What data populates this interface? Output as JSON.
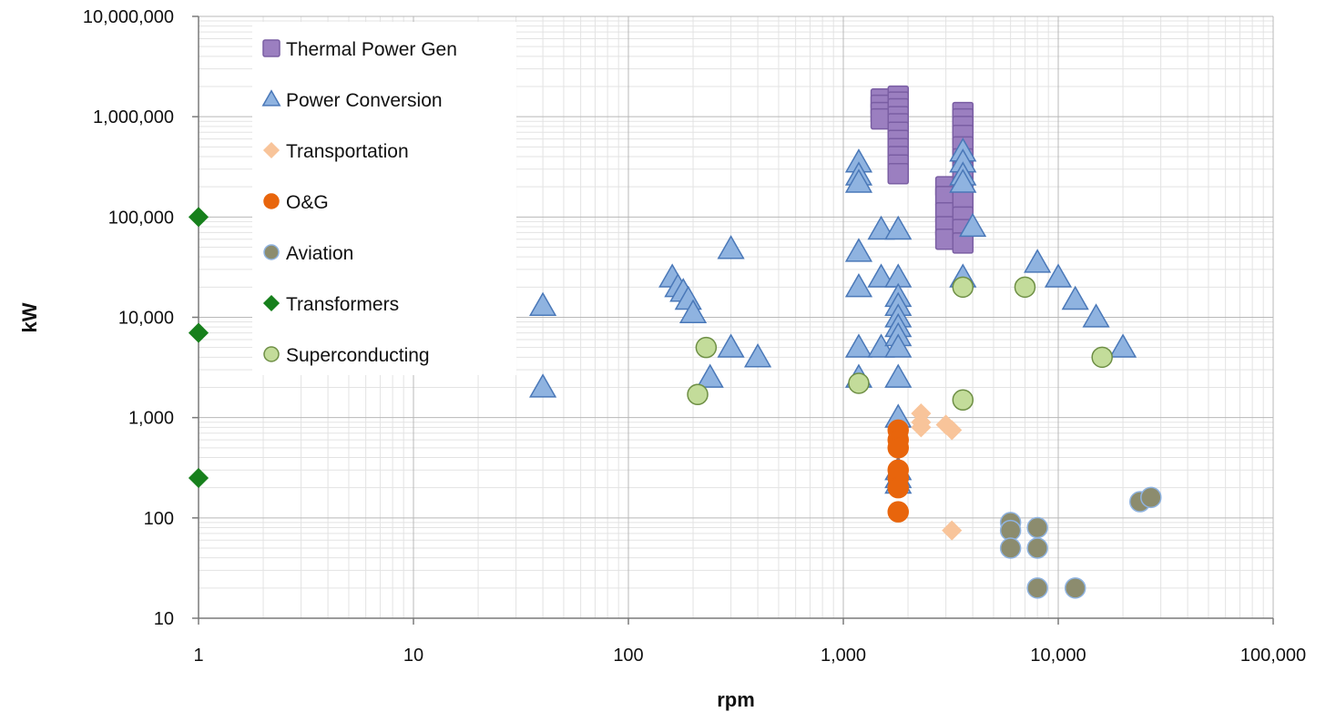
{
  "chart_data": {
    "type": "scatter",
    "xlabel": "rpm",
    "ylabel": "kW",
    "xscale": "log",
    "yscale": "log",
    "xlim": [
      1,
      100000
    ],
    "ylim": [
      10,
      10000000
    ],
    "x_ticks": [
      "1",
      "10",
      "100",
      "1,000",
      "10,000",
      "100,000"
    ],
    "y_ticks": [
      "10",
      "100",
      "1,000",
      "10,000",
      "100,000",
      "1,000,000",
      "10,000,000"
    ],
    "grid": "major and minor",
    "legend_position": "top-left",
    "series": [
      {
        "name": "Thermal Power Gen",
        "marker": "square",
        "color": "#9b7fc0",
        "edge": "#7a5ea3",
        "points": [
          [
            1500,
            1500000
          ],
          [
            1500,
            1300000
          ],
          [
            1500,
            1100000
          ],
          [
            1500,
            950000
          ],
          [
            1800,
            1600000
          ],
          [
            1800,
            1400000
          ],
          [
            1800,
            1200000
          ],
          [
            1800,
            1000000
          ],
          [
            1800,
            850000
          ],
          [
            1800,
            700000
          ],
          [
            1800,
            580000
          ],
          [
            1800,
            480000
          ],
          [
            1800,
            400000
          ],
          [
            1800,
            330000
          ],
          [
            1800,
            270000
          ],
          [
            3000,
            200000
          ],
          [
            3000,
            160000
          ],
          [
            3000,
            110000
          ],
          [
            3000,
            80000
          ],
          [
            3000,
            60000
          ],
          [
            3600,
            1100000
          ],
          [
            3600,
            950000
          ],
          [
            3600,
            800000
          ],
          [
            3600,
            650000
          ],
          [
            3600,
            500000
          ],
          [
            3600,
            380000
          ],
          [
            3600,
            280000
          ],
          [
            3600,
            200000
          ],
          [
            3600,
            150000
          ],
          [
            3600,
            100000
          ],
          [
            3600,
            75000
          ],
          [
            3600,
            55000
          ]
        ]
      },
      {
        "name": "Power Conversion",
        "marker": "triangle",
        "color": "#8fb3e0",
        "edge": "#4a78b8",
        "points": [
          [
            40,
            13000
          ],
          [
            40,
            2000
          ],
          [
            160,
            25000
          ],
          [
            170,
            20000
          ],
          [
            180,
            18000
          ],
          [
            190,
            15000
          ],
          [
            200,
            11000
          ],
          [
            300,
            48000
          ],
          [
            300,
            5000
          ],
          [
            240,
            2500
          ],
          [
            400,
            4000
          ],
          [
            1180,
            45000
          ],
          [
            1180,
            20000
          ],
          [
            1180,
            5000
          ],
          [
            1180,
            2500
          ],
          [
            1180,
            350000
          ],
          [
            1180,
            260000
          ],
          [
            1180,
            220000
          ],
          [
            1500,
            75000
          ],
          [
            1500,
            25000
          ],
          [
            1500,
            5000
          ],
          [
            1800,
            75000
          ],
          [
            1800,
            25000
          ],
          [
            1800,
            16000
          ],
          [
            1800,
            13000
          ],
          [
            1800,
            10000
          ],
          [
            1800,
            8000
          ],
          [
            1800,
            6500
          ],
          [
            1800,
            5000
          ],
          [
            1800,
            2500
          ],
          [
            1800,
            1000
          ],
          [
            1800,
            300
          ],
          [
            1800,
            250
          ],
          [
            1800,
            220
          ],
          [
            3600,
            25000
          ],
          [
            3600,
            450000
          ],
          [
            3600,
            350000
          ],
          [
            3600,
            260000
          ],
          [
            3600,
            220000
          ],
          [
            4000,
            80000
          ],
          [
            8000,
            35000
          ],
          [
            10000,
            25000
          ],
          [
            12000,
            15000
          ],
          [
            15000,
            10000
          ],
          [
            20000,
            5000
          ]
        ]
      },
      {
        "name": "Transportation",
        "marker": "diamond",
        "color": "#f8c49a",
        "edge": "#f8c49a",
        "points": [
          [
            2300,
            1100.0
          ],
          [
            2300,
            900
          ],
          [
            2300,
            800
          ],
          [
            3000,
            850
          ],
          [
            3200,
            750
          ],
          [
            3200,
            75
          ]
        ]
      },
      {
        "name": "O&G",
        "marker": "circle",
        "color": "#e8650c",
        "edge": "#e8650c",
        "points": [
          [
            1800,
            750
          ],
          [
            1800,
            600
          ],
          [
            1800,
            500
          ],
          [
            1800,
            300
          ],
          [
            1800,
            250
          ],
          [
            1800,
            200
          ],
          [
            1800,
            115
          ]
        ]
      },
      {
        "name": "Aviation",
        "marker": "circle",
        "color": "#8c8c6e",
        "edge": "#8fb3e0",
        "points": [
          [
            6000,
            90
          ],
          [
            6000,
            75
          ],
          [
            6000,
            50
          ],
          [
            8000,
            80
          ],
          [
            8000,
            50
          ],
          [
            8000,
            20
          ],
          [
            12000,
            20
          ],
          [
            24000,
            145
          ],
          [
            27000,
            160
          ]
        ]
      },
      {
        "name": "Transformers",
        "marker": "diamond",
        "color": "#17801c",
        "edge": "#17801c",
        "points": [
          [
            1,
            100000
          ],
          [
            1,
            7000
          ],
          [
            1,
            250
          ]
        ]
      },
      {
        "name": "Superconducting",
        "marker": "circle",
        "color": "#c3dc9a",
        "edge": "#6e8f45",
        "points": [
          [
            230,
            5000
          ],
          [
            210,
            1700
          ],
          [
            1180,
            2200
          ],
          [
            3600,
            20000
          ],
          [
            3600,
            1500
          ],
          [
            7000,
            20000
          ],
          [
            16000,
            4000
          ]
        ]
      }
    ]
  }
}
